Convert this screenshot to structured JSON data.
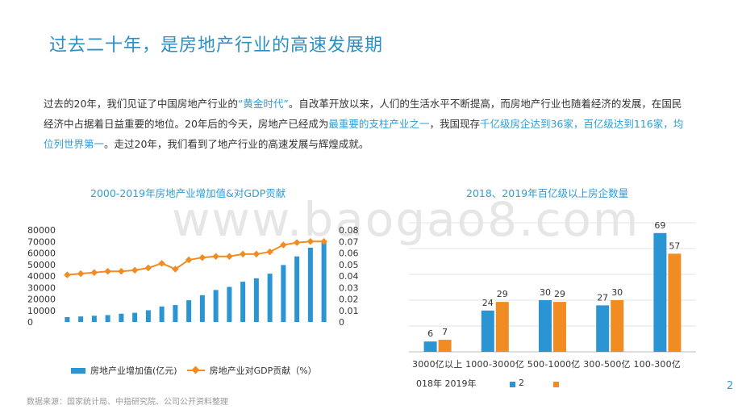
{
  "title": "过去二十年，是房地产行业的高速发展期",
  "paragraph": {
    "p1": "过去的20年，我们见证了中国房地产行业的",
    "h1": "“黄金时代”",
    "p2": "。自改革开放以来，人们的生活水平不断提高，而房地产行业也随着经济的发展，在国民经济中占据着日益重要的地位。20年后的今天，房地产已经成为",
    "h2": "最重要的支柱产业之一",
    "p3": "，我国现存",
    "h3": "千亿级房企达到36家，百亿级达到116家，均位列世界第一",
    "p4": "。走过20年，我们看到了地产行业的高速发展与辉煌成就。"
  },
  "watermark": "www.baogao8.com",
  "chart_data": [
    {
      "type": "bar",
      "title": "2000-2019年房地产业增加值&对GDP贡献",
      "categories": [
        "2000",
        "2001",
        "2002",
        "2003",
        "2004",
        "2005",
        "2006",
        "2007",
        "2008",
        "2009",
        "2010",
        "2011",
        "2012",
        "2013",
        "2014",
        "2015",
        "2016",
        "2017",
        "2018",
        "2019"
      ],
      "series": [
        {
          "name": "房地产业增加值(亿元)",
          "type": "bar",
          "axis": "left",
          "values": [
            4200,
            4800,
            5400,
            6000,
            7200,
            8000,
            10200,
            13500,
            14700,
            18900,
            23300,
            27800,
            30500,
            35000,
            38000,
            42000,
            49500,
            57000,
            64600,
            70000
          ]
        },
        {
          "name": "房地产业对GDP贡献（%）",
          "type": "line",
          "axis": "right",
          "values": [
            0.041,
            0.042,
            0.043,
            0.044,
            0.044,
            0.045,
            0.047,
            0.051,
            0.046,
            0.054,
            0.056,
            0.057,
            0.057,
            0.059,
            0.059,
            0.061,
            0.067,
            0.069,
            0.07,
            0.07
          ]
        }
      ],
      "y_left": {
        "ylim": [
          0,
          80000
        ],
        "ticks": [
          "0",
          "10000",
          "20000",
          "30000",
          "40000",
          "50000",
          "60000",
          "70000",
          "80000"
        ]
      },
      "y_right": {
        "ylim": [
          0,
          0.08
        ],
        "ticks": [
          "0",
          "0.01",
          "0.02",
          "0.03",
          "0.04",
          "0.05",
          "0.06",
          "0.07",
          "0.08"
        ]
      },
      "colors": {
        "bar": "#2a95d2",
        "line": "#f08c22"
      },
      "legend": "bottom"
    },
    {
      "type": "bar",
      "title": "2018、2019年百亿级以上房企数量",
      "categories": [
        "3000亿以上",
        "1000-3000亿",
        "500-1000亿",
        "300-500亿",
        "100-300亿"
      ],
      "series": [
        {
          "name": "2018年",
          "values": [
            6,
            24,
            30,
            27,
            69
          ]
        },
        {
          "name": "2019年",
          "values": [
            7,
            29,
            29,
            30,
            57
          ]
        }
      ],
      "ylim": [
        0,
        75
      ],
      "grid": true,
      "colors": {
        "2018": "#2a95d2",
        "2019": "#f08c22"
      },
      "legend": "bottom"
    }
  ],
  "chart2_labels": {
    "cats_row": "3000亿以上 1000-3000亿 500-1000亿 300-500亿 100-300亿",
    "legend_years": "018年 2019年",
    "legend_a": "2"
  },
  "source": "数据来源：国家统计局、中指研究院、公司公开资料整理",
  "page_number": "2"
}
